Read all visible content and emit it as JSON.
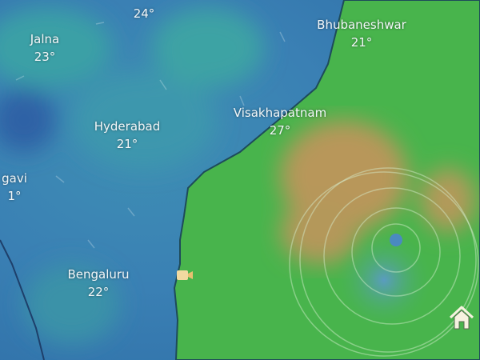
{
  "cities": [
    {
      "name": "",
      "temp": "24°"
    },
    {
      "name": "Jalna",
      "temp": "23°"
    },
    {
      "name": "Bhubaneshwar",
      "temp": "21°"
    },
    {
      "name": "Hyderabad",
      "temp": "21°"
    },
    {
      "name": "Visakhapatnam",
      "temp": "27°"
    },
    {
      "name": "gavi",
      "temp": "1°"
    },
    {
      "name": "Bengaluru",
      "temp": "22°"
    }
  ],
  "icons": {
    "webcam": "camera-icon",
    "home": "home-icon"
  },
  "colors": {
    "land_low": "#3a7fb5",
    "land_teal": "#3aa0a8",
    "sea_wind": "#45b84a",
    "high_wind": "#b6985a",
    "cyclone_eye": "#5a9ab8"
  }
}
